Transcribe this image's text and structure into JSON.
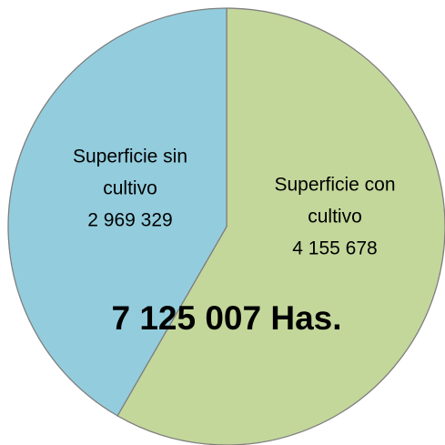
{
  "chart_data": {
    "type": "pie",
    "categories": [
      "Superficie con cultivo",
      "Superficie sin cultivo"
    ],
    "values": [
      4155678,
      2969329
    ],
    "value_labels": [
      "4 155 678",
      "2 969 329"
    ],
    "colors": [
      "#c4d79b",
      "#93cddd"
    ],
    "total_label": "7 125 007 Has."
  }
}
